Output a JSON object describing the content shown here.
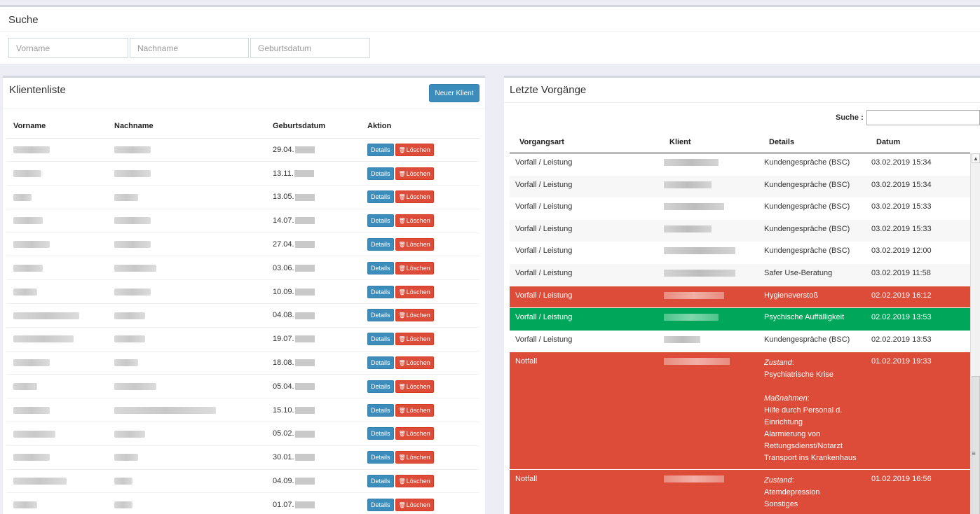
{
  "search": {
    "title": "Suche",
    "first_name_placeholder": "Vorname",
    "last_name_placeholder": "Nachname",
    "birthdate_placeholder": "Geburtsdatum"
  },
  "client_list": {
    "title": "Klientenliste",
    "new_client_label": "Neuer Klient",
    "columns": [
      "Vorname",
      "Nachname",
      "Geburtsdatum",
      "Aktion"
    ],
    "details_label": "Details",
    "delete_label": "Löschen",
    "rows": [
      {
        "birth_prefix": "29.04."
      },
      {
        "birth_prefix": "13.11."
      },
      {
        "birth_prefix": "13.05."
      },
      {
        "birth_prefix": "14.07."
      },
      {
        "birth_prefix": "27.04."
      },
      {
        "birth_prefix": "03.06."
      },
      {
        "birth_prefix": "10.09."
      },
      {
        "birth_prefix": "04.08."
      },
      {
        "birth_prefix": "19.07."
      },
      {
        "birth_prefix": "18.08."
      },
      {
        "birth_prefix": "05.04."
      },
      {
        "birth_prefix": "15.10."
      },
      {
        "birth_prefix": "05.02."
      },
      {
        "birth_prefix": "30.01."
      },
      {
        "birth_prefix": "04.09."
      },
      {
        "birth_prefix": "01.07."
      }
    ]
  },
  "events": {
    "title": "Letzte Vorgänge",
    "search_label": "Suche :",
    "columns": [
      "Vorgangsart",
      "Klient",
      "Details",
      "Datum"
    ],
    "rows": [
      {
        "type": "Vorfall / Leistung",
        "details": "Kundengespräche (BSC)",
        "date": "03.02.2019 15:34",
        "style": ""
      },
      {
        "type": "Vorfall / Leistung",
        "details": "Kundengespräche (BSC)",
        "date": "03.02.2019 15:34",
        "style": "alt"
      },
      {
        "type": "Vorfall / Leistung",
        "details": "Kundengespräche (BSC)",
        "date": "03.02.2019 15:33",
        "style": ""
      },
      {
        "type": "Vorfall / Leistung",
        "details": "Kundengespräche (BSC)",
        "date": "03.02.2019 15:33",
        "style": "alt"
      },
      {
        "type": "Vorfall / Leistung",
        "details": "Kundengespräche (BSC)",
        "date": "03.02.2019 12:00",
        "style": ""
      },
      {
        "type": "Vorfall / Leistung",
        "details": "Safer Use-Beratung",
        "date": "03.02.2019 11:58",
        "style": "alt"
      },
      {
        "type": "Vorfall / Leistung",
        "details": "Hygieneverstoß",
        "date": "02.02.2019 16:12",
        "style": "red"
      },
      {
        "type": "Vorfall / Leistung",
        "details": "Psychische Auffälligkeit",
        "date": "02.02.2019 13:53",
        "style": "green"
      },
      {
        "type": "Vorfall / Leistung",
        "details": "Kundengespräche (BSC)",
        "date": "02.02.2019 13:53",
        "style": ""
      }
    ],
    "emergency1": {
      "type": "Notfall",
      "date": "01.02.2019 19:33",
      "state_label": "Zustand",
      "state_value": "Psychiatrische Krise",
      "measures_label": "Maßnahmen",
      "measure_1a": "Hilfe durch Personal d.",
      "measure_1b": "Einrichtung",
      "measure_2a": "Alarmierung von",
      "measure_2b": "Rettungsdienst/Notarzt",
      "measure_3": "Transport ins Krankenhaus"
    },
    "emergency2": {
      "type": "Notfall",
      "date": "01.02.2019 16:56",
      "state_label": "Zustand",
      "state_value_1": "Atemdepression",
      "state_value_2": "Sonstiges"
    }
  },
  "colors": {
    "primary": "#3c8dbc",
    "danger": "#dd4b39",
    "success": "#00a65a"
  }
}
